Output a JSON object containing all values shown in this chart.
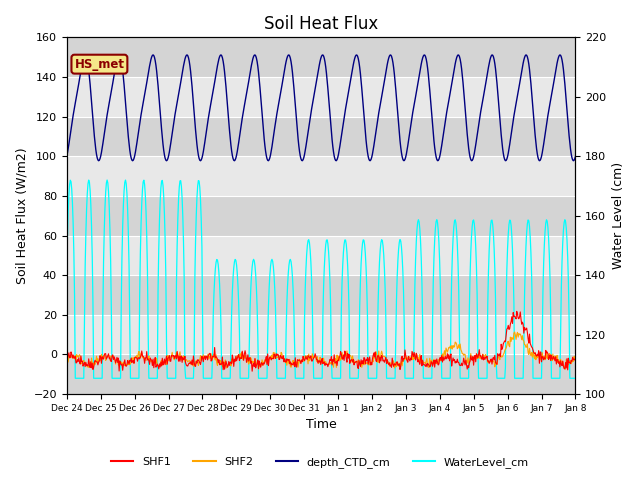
{
  "title": "Soil Heat Flux",
  "ylabel_left": "Soil Heat Flux (W/m2)",
  "ylabel_right": "Water Level (cm)",
  "xlabel": "Time",
  "ylim_left": [
    -20,
    160
  ],
  "ylim_right": [
    100,
    220
  ],
  "annotation_text": "HS_met",
  "annotation_bg": "#f5e88a",
  "annotation_edge": "#8b0000",
  "bg_color": "#e8e8e8",
  "band_colors_even": "#d4d4d4",
  "band_colors_odd": "#e8e8e8",
  "legend_entries": [
    "SHF1",
    "SHF2",
    "depth_CTD_cm",
    "WaterLevel_cm"
  ],
  "legend_colors": [
    "red",
    "orange",
    "darkblue",
    "cyan"
  ],
  "title_fontsize": 12,
  "axis_fontsize": 9,
  "tick_fontsize": 8,
  "xtick_labels": [
    "Dec 24",
    "Dec 25",
    "Dec 26",
    "Dec 27",
    "Dec 28",
    "Dec 29",
    "Dec 30",
    "Dec 31",
    "Jan 1",
    "Jan 2",
    "Jan 3",
    "Jan 4",
    "Jan 5",
    "Jan 6",
    "Jan 7",
    "Jan 8"
  ]
}
